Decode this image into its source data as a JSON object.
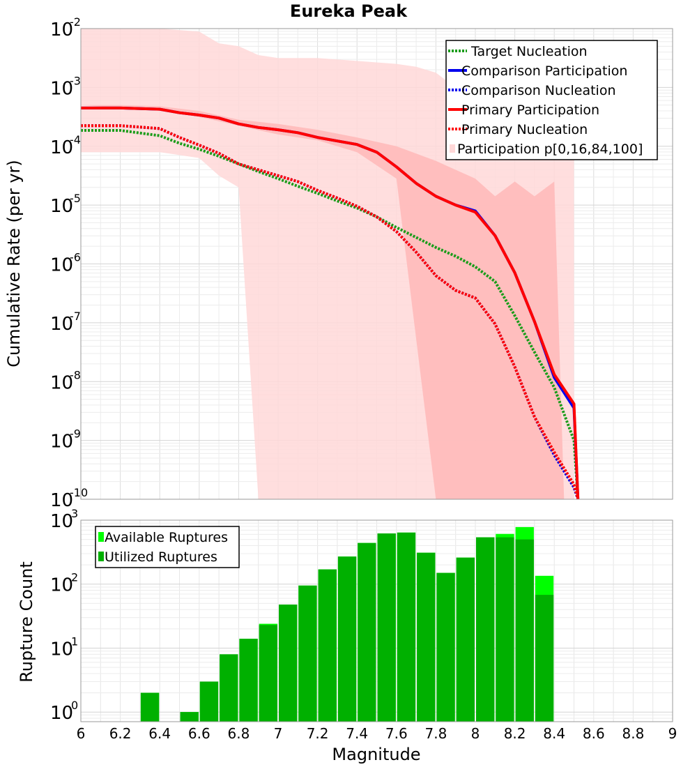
{
  "chart_data": [
    {
      "type": "line",
      "title": "Eureka Peak",
      "xlabel": "Magnitude",
      "ylabel": "Cumulative Rate (per yr)",
      "xlim": [
        6,
        9
      ],
      "ylim_log10": [
        -10,
        -2
      ],
      "yscale": "log",
      "ytick_exponents": [
        -2,
        -3,
        -4,
        -5,
        -6,
        -7,
        -8,
        -9,
        -10
      ],
      "ytick_base": "10",
      "grid": true,
      "legend_position": "top-right",
      "legend": [
        "Target Nucleation",
        "Comparison Participation",
        " Comparison Nucleation",
        "Primary Participation",
        " Primary Nucleation",
        "Participation p[0,16,84,100]"
      ],
      "x": [
        6.0,
        6.2,
        6.4,
        6.5,
        6.6,
        6.7,
        6.8,
        6.9,
        7.0,
        7.1,
        7.2,
        7.3,
        7.4,
        7.5,
        7.6,
        7.7,
        7.8,
        7.9,
        8.0,
        8.1,
        8.2,
        8.3,
        8.4,
        8.5,
        8.52
      ],
      "series": [
        {
          "name": "Target Nucleation",
          "color": "#1a9c1a",
          "style": "dotted",
          "log10_values": [
            -3.73,
            -3.73,
            -3.82,
            -3.95,
            -4.05,
            -4.17,
            -4.3,
            -4.43,
            -4.55,
            -4.68,
            -4.8,
            -4.93,
            -5.05,
            -5.2,
            -5.38,
            -5.55,
            -5.72,
            -5.87,
            -6.05,
            -6.3,
            -6.88,
            -7.5,
            -8.1,
            -9.0,
            -10.2
          ]
        },
        {
          "name": "Comparison Participation",
          "color": "#0000ee",
          "style": "solid",
          "log10_values": [
            -3.35,
            -3.35,
            -3.37,
            -3.43,
            -3.47,
            -3.52,
            -3.62,
            -3.68,
            -3.72,
            -3.77,
            -3.85,
            -3.91,
            -3.97,
            -4.1,
            -4.35,
            -4.63,
            -4.85,
            -5.0,
            -5.1,
            -5.52,
            -6.15,
            -6.98,
            -7.93,
            -8.45,
            -10.2
          ]
        },
        {
          "name": "Comparison Nucleation",
          "color": "#0000ee",
          "style": "dotted",
          "log10_values": [
            -3.65,
            -3.65,
            -3.7,
            -3.85,
            -3.98,
            -4.12,
            -4.3,
            -4.4,
            -4.5,
            -4.6,
            -4.75,
            -4.88,
            -5.02,
            -5.2,
            -5.45,
            -5.8,
            -6.2,
            -6.45,
            -6.58,
            -7.02,
            -7.75,
            -8.6,
            -9.25,
            -9.8,
            -10.2
          ]
        },
        {
          "name": "Primary Participation",
          "color": "#ff0000",
          "style": "solid",
          "log10_values": [
            -3.35,
            -3.35,
            -3.37,
            -3.43,
            -3.47,
            -3.52,
            -3.62,
            -3.68,
            -3.72,
            -3.77,
            -3.85,
            -3.91,
            -3.97,
            -4.1,
            -4.35,
            -4.63,
            -4.85,
            -5.0,
            -5.12,
            -5.52,
            -6.15,
            -6.98,
            -7.88,
            -8.38,
            -10.2
          ]
        },
        {
          "name": "Primary Nucleation",
          "color": "#ff0000",
          "style": "dotted",
          "log10_values": [
            -3.65,
            -3.65,
            -3.7,
            -3.85,
            -3.98,
            -4.12,
            -4.3,
            -4.4,
            -4.5,
            -4.6,
            -4.75,
            -4.88,
            -5.02,
            -5.2,
            -5.45,
            -5.8,
            -6.2,
            -6.45,
            -6.58,
            -7.02,
            -7.75,
            -8.6,
            -9.2,
            -9.75,
            -10.2
          ]
        }
      ],
      "bands": [
        {
          "name": "p0-p100",
          "color": "#ffd8d8",
          "x": [
            6.0,
            6.2,
            6.4,
            6.6,
            6.7,
            6.8,
            6.9,
            7.0,
            7.2,
            7.4,
            7.6,
            7.7,
            7.8,
            7.9,
            8.0,
            8.1,
            8.2,
            8.3,
            8.4,
            8.5
          ],
          "log10_upper": [
            -2.0,
            -2.0,
            -2.0,
            -2.05,
            -2.25,
            -2.3,
            -2.45,
            -2.5,
            -2.5,
            -2.55,
            -2.6,
            -2.65,
            -2.75,
            -3.0,
            -3.2,
            -3.5,
            -3.6,
            -3.85,
            -3.95,
            -4.15
          ],
          "log10_lower": [
            -4.1,
            -4.1,
            -4.1,
            -4.2,
            -4.5,
            -4.7,
            -10.0,
            -10.0,
            -10.0,
            -10.0,
            -10.0,
            -10.0,
            -10.0,
            -10.0,
            -10.0,
            -10.0,
            -10.0,
            -10.0,
            -10.0,
            -10.0
          ]
        },
        {
          "name": "p16-p84",
          "color": "#ffb8b8",
          "x": [
            6.0,
            6.2,
            6.4,
            6.6,
            6.8,
            7.0,
            7.2,
            7.4,
            7.6,
            7.8,
            8.0,
            8.1,
            8.2,
            8.3,
            8.4,
            8.45
          ],
          "log10_upper": [
            -3.3,
            -3.3,
            -3.32,
            -3.4,
            -3.55,
            -3.62,
            -3.72,
            -3.85,
            -4.0,
            -4.25,
            -4.55,
            -4.85,
            -4.6,
            -4.85,
            -4.6,
            -10.0
          ],
          "log10_lower": [
            -3.3,
            -3.35,
            -3.4,
            -3.5,
            -3.65,
            -3.8,
            -3.9,
            -4.1,
            -4.55,
            -10.0,
            -10.0,
            -10.0,
            -10.0,
            -10.0,
            -10.0,
            -10.0
          ]
        }
      ]
    },
    {
      "type": "bar",
      "xlabel": "Magnitude",
      "ylabel": "Rupture Count",
      "yscale": "log",
      "xlim": [
        6,
        9
      ],
      "ylim_log10": [
        -0.15,
        3
      ],
      "ytick_exponents": [
        3,
        2,
        1,
        0
      ],
      "ytick_base": "10",
      "xticks": [
        "6",
        "6.2",
        "6.4",
        "6.6",
        "6.8",
        "7",
        "7.2",
        "7.4",
        "7.6",
        "7.8",
        "8",
        "8.2",
        "8.4",
        "8.6",
        "8.8",
        "9"
      ],
      "legend_position": "top-left",
      "legend": [
        "Available Ruptures",
        "Utilized Ruptures"
      ],
      "bin_width": 0.1,
      "bin_centers": [
        6.35,
        6.55,
        6.65,
        6.75,
        6.85,
        6.95,
        7.05,
        7.15,
        7.25,
        7.35,
        7.45,
        7.55,
        7.65,
        7.75,
        7.85,
        7.95,
        8.05,
        8.15,
        8.25,
        8.35
      ],
      "series": [
        {
          "name": "Available Ruptures",
          "color": "#00ff00",
          "values": [
            2,
            1,
            3,
            8,
            14,
            24,
            48,
            95,
            170,
            270,
            440,
            620,
            640,
            310,
            150,
            260,
            540,
            610,
            780,
            135
          ]
        },
        {
          "name": "Utilized Ruptures",
          "color": "#00b000",
          "values": [
            2,
            1,
            3,
            8,
            14,
            23,
            48,
            95,
            170,
            270,
            440,
            620,
            640,
            310,
            150,
            260,
            540,
            540,
            500,
            68
          ]
        }
      ]
    }
  ]
}
